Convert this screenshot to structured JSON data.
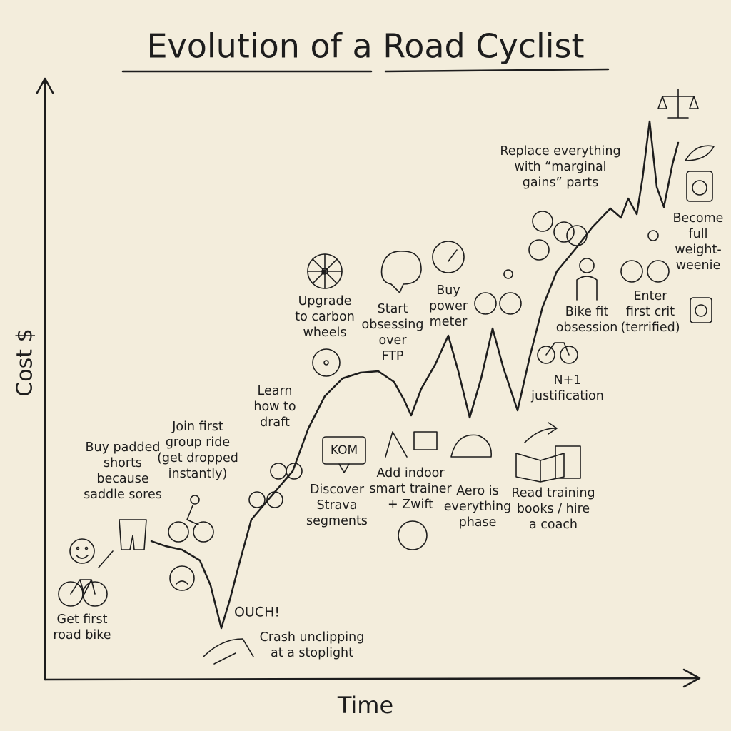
{
  "title": "Evolution of a Road Cyclist",
  "axes": {
    "y_label": "Cost $",
    "x_label": "Time"
  },
  "exclamation": "OUCH!",
  "icon_text": "KOM",
  "annotations": [
    {
      "lines": [
        "Get first",
        "road bike"
      ]
    },
    {
      "lines": [
        "Buy padded",
        "shorts",
        "because",
        "saddle sores"
      ]
    },
    {
      "lines": [
        "Join first",
        "group ride",
        "(get dropped",
        "instantly)"
      ]
    },
    {
      "lines": [
        "Learn",
        "how to",
        "draft"
      ]
    },
    {
      "lines": [
        "Upgrade",
        "to carbon",
        "wheels"
      ]
    },
    {
      "lines": [
        "Start",
        "obsessing",
        "over",
        "FTP"
      ]
    },
    {
      "lines": [
        "Buy",
        "power",
        "meter"
      ]
    },
    {
      "lines": [
        "Discover",
        "Strava",
        "segments"
      ]
    },
    {
      "lines": [
        "Add indoor",
        "smart trainer",
        "+ Zwift"
      ]
    },
    {
      "lines": [
        "Aero is",
        "everything",
        "phase"
      ]
    },
    {
      "lines": [
        "Read training",
        "books / hire",
        "a coach"
      ]
    },
    {
      "lines": [
        "N+1",
        "justification"
      ]
    },
    {
      "lines": [
        "Bike fit",
        "obsession"
      ]
    },
    {
      "lines": [
        "Enter",
        "first crit",
        "(terrified)"
      ]
    },
    {
      "lines": [
        "Replace everything",
        "with “marginal",
        "gains” parts"
      ]
    },
    {
      "lines": [
        "Become",
        "full",
        "weight-",
        "weenie"
      ]
    },
    {
      "lines": [
        "Crash unclipping",
        "at a stoplight"
      ]
    }
  ]
}
